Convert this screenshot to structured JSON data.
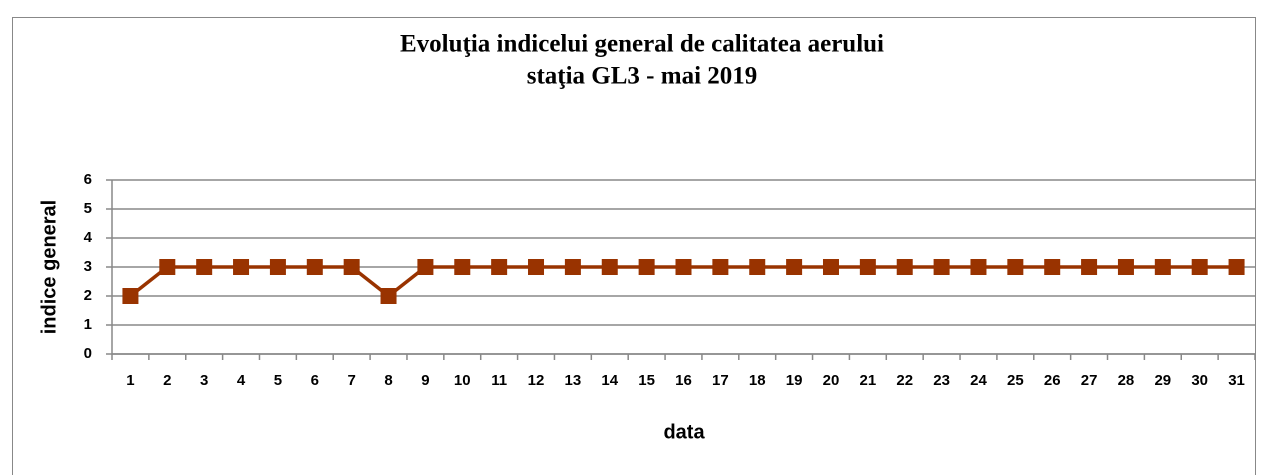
{
  "chart_data": {
    "type": "line",
    "title": "Evoluţia indicelui general de calitatea aerului",
    "subtitle": "staţia GL3 - mai 2019",
    "x_label": "data",
    "y_label": "indice general",
    "categories": [
      "1",
      "2",
      "3",
      "4",
      "5",
      "6",
      "7",
      "8",
      "9",
      "10",
      "11",
      "12",
      "13",
      "14",
      "15",
      "16",
      "17",
      "18",
      "19",
      "20",
      "21",
      "22",
      "23",
      "24",
      "25",
      "26",
      "27",
      "28",
      "29",
      "30",
      "31"
    ],
    "values": [
      2,
      3,
      3,
      3,
      3,
      3,
      3,
      2,
      3,
      3,
      3,
      3,
      3,
      3,
      3,
      3,
      3,
      3,
      3,
      3,
      3,
      3,
      3,
      3,
      3,
      3,
      3,
      3,
      3,
      3,
      3
    ],
    "color": "#993300",
    "ylim": [
      0,
      6
    ],
    "yticks": [
      0,
      1,
      2,
      3,
      4,
      5,
      6
    ],
    "grid": true
  }
}
